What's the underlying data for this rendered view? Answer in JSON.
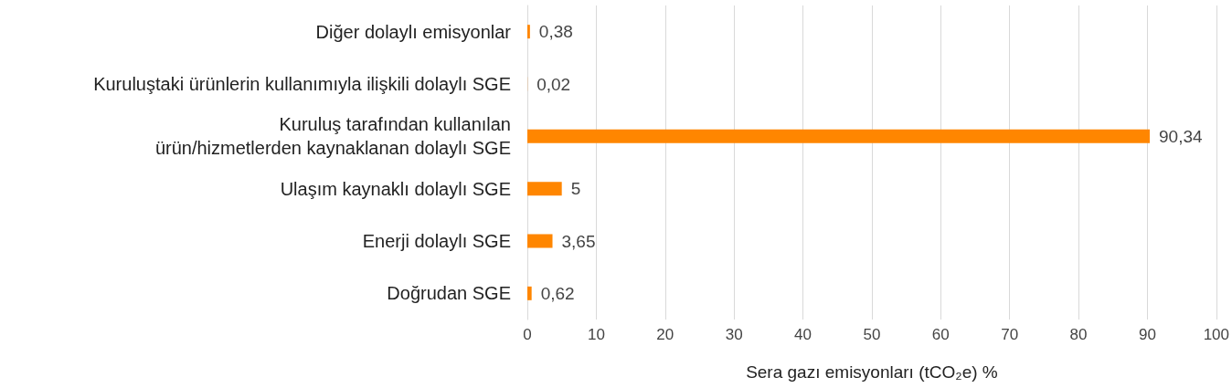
{
  "chart_data": {
    "type": "bar",
    "orientation": "horizontal",
    "categories": [
      "Diğer dolaylı emisyonlar",
      "Kuruluştaki ürünlerin kullanımıyla ilişkili dolaylı SGE",
      "Kuruluş tarafından kullanılan\nürün/hizmetlerden kaynaklanan dolaylı SGE",
      "Ulaşım kaynaklı dolaylı SGE",
      "Enerji dolaylı SGE",
      "Doğrudan SGE"
    ],
    "values": [
      0.38,
      0.02,
      90.34,
      5,
      3.65,
      0.62
    ],
    "value_labels": [
      "0,38",
      "0,02",
      "90,34",
      "5",
      "3,65",
      "0,62"
    ],
    "color": "#ff8600",
    "xlabel": "Sera gazı emisyonları (tCO₂e) %",
    "xlim": [
      0,
      100
    ],
    "xticks": [
      0,
      10,
      20,
      30,
      40,
      50,
      60,
      70,
      80,
      90,
      100
    ],
    "grid": "x"
  }
}
